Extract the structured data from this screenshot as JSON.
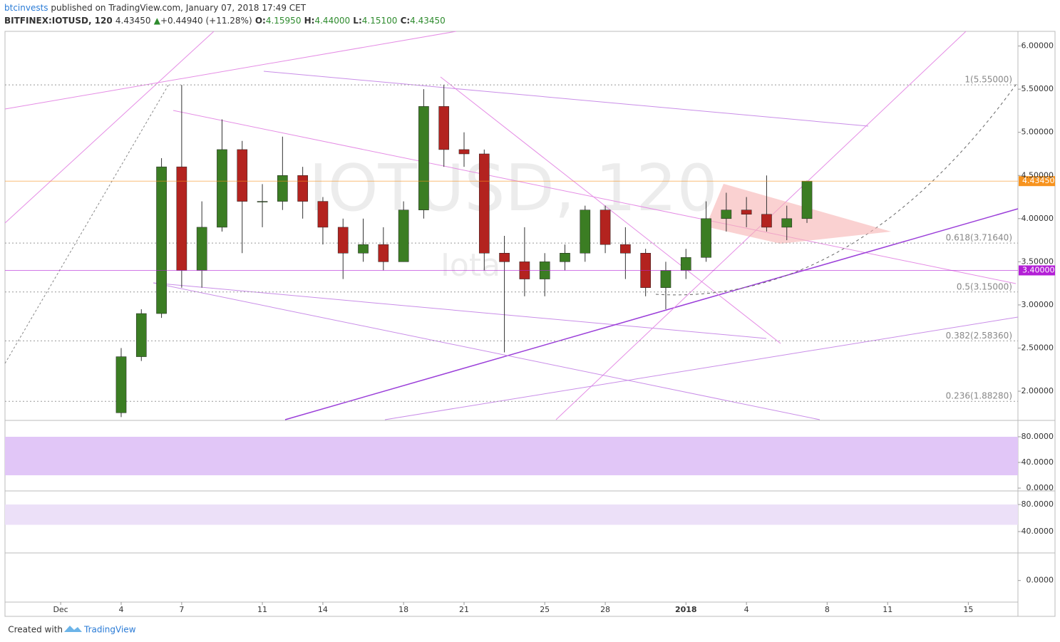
{
  "header": {
    "author": "btcinvests",
    "published": "published on TradingView.com, January 07, 2018 17:49 CET",
    "symbol": "BITFINEX:IOTUSD, 120",
    "last": "4.43450",
    "change": "+0.44940 (+11.28%)",
    "o_label": "O:",
    "o": "4.15950",
    "h_label": "H:",
    "h": "4.44000",
    "l_label": "L:",
    "l": "4.15100",
    "c_label": "C:",
    "c": "4.43450"
  },
  "watermark": {
    "main": "IOTUSD, 120",
    "sub": "Iota"
  },
  "footer": {
    "created": "Created with",
    "brand": "TradingView"
  },
  "chart_data": [
    {
      "type": "candlestick",
      "x": [
        3,
        4,
        5,
        6,
        7,
        8,
        9,
        10,
        11,
        12,
        13,
        14,
        15,
        16,
        17,
        18,
        19,
        20,
        21,
        22,
        23,
        24,
        25,
        26,
        27,
        28,
        29,
        30,
        31,
        32,
        33,
        34,
        35,
        36,
        37
      ],
      "open": [
        1.75,
        2.4,
        2.9,
        4.6,
        3.4,
        3.9,
        4.8,
        4.2,
        4.2,
        4.5,
        4.2,
        3.9,
        3.6,
        3.7,
        3.5,
        4.1,
        5.3,
        4.8,
        4.75,
        3.6,
        3.5,
        3.3,
        3.5,
        3.6,
        4.1,
        3.7,
        3.6,
        3.2,
        3.4,
        3.55,
        4.0,
        4.1,
        4.05,
        3.9,
        4.0
      ],
      "high": [
        2.5,
        2.95,
        4.7,
        5.55,
        4.2,
        5.15,
        4.9,
        4.4,
        4.95,
        4.6,
        4.25,
        4.0,
        4.0,
        3.9,
        4.2,
        5.5,
        5.55,
        5.0,
        4.8,
        3.8,
        3.9,
        3.6,
        3.7,
        4.15,
        4.15,
        3.9,
        3.65,
        3.5,
        3.65,
        4.2,
        4.3,
        4.25,
        4.5,
        4.15,
        4.44
      ],
      "low": [
        1.7,
        2.35,
        2.85,
        3.2,
        3.2,
        3.85,
        3.6,
        3.9,
        4.1,
        4.0,
        3.7,
        3.3,
        3.5,
        3.4,
        3.5,
        4.0,
        4.6,
        4.6,
        3.4,
        2.45,
        3.1,
        3.1,
        3.4,
        3.5,
        3.6,
        3.3,
        3.1,
        2.95,
        3.3,
        3.5,
        3.85,
        3.9,
        3.85,
        3.75,
        3.95
      ],
      "close": [
        2.4,
        2.9,
        4.6,
        3.4,
        3.9,
        4.8,
        4.2,
        4.2,
        4.5,
        4.2,
        3.9,
        3.6,
        3.7,
        3.5,
        4.1,
        5.3,
        4.8,
        4.75,
        3.6,
        3.5,
        3.3,
        3.5,
        3.6,
        4.1,
        3.7,
        3.6,
        3.2,
        3.4,
        3.55,
        4.0,
        4.1,
        4.05,
        3.9,
        4.0,
        4.4345
      ],
      "up_color": "#3b7d23",
      "down_color": "#b3231f",
      "xlim": [
        -2.76,
        47.46
      ],
      "ylim": [
        1.67,
        6.17
      ],
      "xticks": [
        {
          "value": 0,
          "label": "Dec"
        },
        {
          "value": 3,
          "label": "4"
        },
        {
          "value": 6,
          "label": "7"
        },
        {
          "value": 10,
          "label": "11"
        },
        {
          "value": 13,
          "label": "14"
        },
        {
          "value": 17,
          "label": "18"
        },
        {
          "value": 20,
          "label": "21"
        },
        {
          "value": 24,
          "label": "25"
        },
        {
          "value": 27,
          "label": "28"
        },
        {
          "value": 31,
          "label": "2018"
        },
        {
          "value": 34,
          "label": "4"
        },
        {
          "value": 38,
          "label": "8"
        },
        {
          "value": 41,
          "label": "11"
        },
        {
          "value": 45,
          "label": "15"
        }
      ],
      "yticks": [
        {
          "value": 2,
          "label": "2.00000"
        },
        {
          "value": 2.5,
          "label": "2.50000"
        },
        {
          "value": 3,
          "label": "3.00000"
        },
        {
          "value": 3.5,
          "label": "3.50000"
        },
        {
          "value": 4,
          "label": "4.00000"
        },
        {
          "value": 4.5,
          "label": "4.50000"
        },
        {
          "value": 5,
          "label": "5.00000"
        },
        {
          "value": 5.5,
          "label": "5.50000"
        },
        {
          "value": 6,
          "label": "6.00000"
        }
      ],
      "fib_levels": [
        {
          "value": 5.55,
          "label": "1(5.55000)"
        },
        {
          "value": 3.7164,
          "label": "0.618(3.71640)"
        },
        {
          "value": 3.15,
          "label": "0.5(3.15000)"
        },
        {
          "value": 2.5836,
          "label": "0.382(2.58360)"
        },
        {
          "value": 1.8828,
          "label": "0.236(1.88280)"
        }
      ],
      "price_tags": [
        {
          "value": 4.4345,
          "label": "4.43450",
          "color": "#f7931e"
        },
        {
          "value": 3.4,
          "label": "3.40000",
          "color": "#b31fd6"
        }
      ]
    },
    {
      "type": "indicator",
      "ylim": [
        -3.3,
        104.4
      ],
      "band": [
        20,
        80
      ],
      "band_color": "#e1c6f7",
      "yticks": [
        {
          "value": 0,
          "label": "0.0000"
        },
        {
          "value": 40,
          "label": "40.0000"
        },
        {
          "value": 80,
          "label": "80.0000"
        }
      ]
    },
    {
      "type": "indicator",
      "ylim": [
        9.5,
        99
      ],
      "band": [
        50,
        80
      ],
      "band_color": "#ece0f8",
      "yticks": [
        {
          "value": 40,
          "label": "40.0000"
        },
        {
          "value": 80,
          "label": "80.0000"
        }
      ]
    },
    {
      "type": "indicator",
      "ylim": [
        -0.35,
        0.45
      ],
      "yticks": [
        {
          "value": 0,
          "label": "0.0000"
        }
      ]
    }
  ]
}
